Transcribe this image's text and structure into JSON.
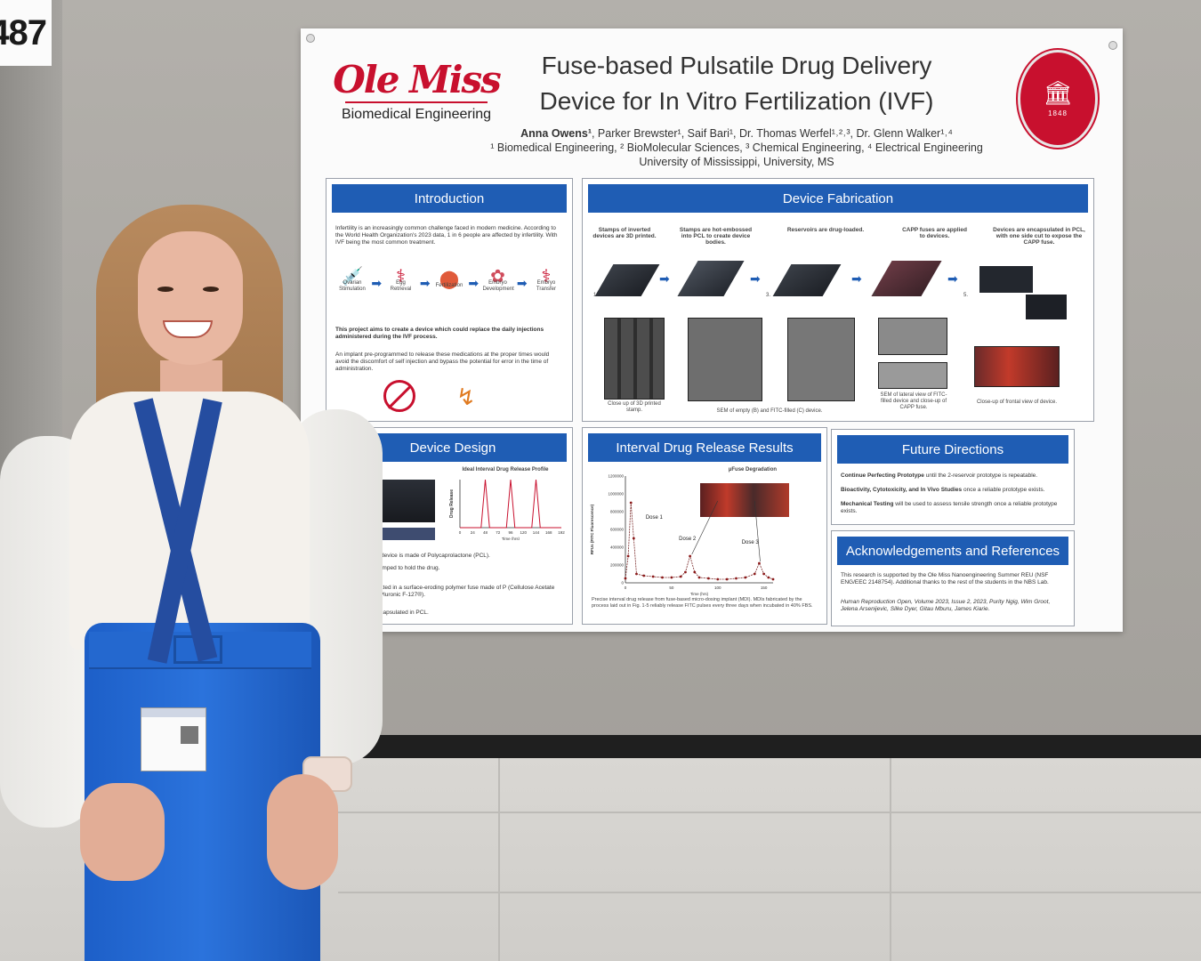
{
  "booth_number": "487",
  "poster": {
    "logo_text": "Ole Miss",
    "logo_subtitle": "Biomedical Engineering",
    "seal_year": "1848",
    "title_line1": "Fuse-based Pulsatile Drug Delivery",
    "title_line2": "Device for In Vitro Fertilization (IVF)",
    "author_first": "Anna Owens¹",
    "authors_rest": ", Parker Brewster¹, Saif Bari¹, Dr. Thomas Werfel¹˒²˒³, Dr. Glenn Walker¹˒⁴",
    "affiliations": "¹ Biomedical Engineering, ² BioMolecular Sciences, ³ Chemical Engineering, ⁴ Electrical Engineering",
    "university": "University of Mississippi, University, MS",
    "sections": {
      "introduction": {
        "heading": "Introduction",
        "p1": "Infertility is an increasingly common challenge faced in modern medicine. According to the World Health Organization's 2023 data, 1 in 6 people are affected by infertility. With IVF being the most common treatment.",
        "steps": [
          "Ovarian Stimulation",
          "Egg Retrieval",
          "Fertilization",
          "Embryo Development",
          "Embryo Transfer"
        ],
        "p2": "This project aims to create a device which could replace the daily injections administered during the IVF process.",
        "p3": "An implant pre-programmed to release these medications at the proper times would avoid the discomfort of self injection and bypass the potential for error in the time of administration."
      },
      "fabrication": {
        "heading": "Device Fabrication",
        "steps": [
          "Stamps of inverted devices are 3D printed.",
          "Stamps are hot-embossed into PCL to create device bodies.",
          "Reservoirs are drug-loaded.",
          "CAPP fuses are applied to devices.",
          "Devices are encapsulated in PCL, with one side cut to expose the CAPP fuse."
        ],
        "step_numbers": [
          "1.",
          "2.",
          "3.",
          "4.",
          "5."
        ],
        "caption_a": "Close up of 3D printed stamp.",
        "caption_bc": "SEM of empty (B) and FITC-filled (C) device.",
        "caption_d": "SEM of lateral view of FITC-filled device and close-up of CAPP fuse.",
        "caption_e": "Close-up of frontal view of device."
      },
      "design": {
        "heading": "Device Design",
        "profile_title": "Ideal Interval Drug Release Profile",
        "ylabel": "Drug Release",
        "xlabel": "Time (hrs)",
        "ticks": [
          "0",
          "24",
          "48",
          "72",
          "96",
          "120",
          "144",
          "168",
          "192"
        ],
        "b1": "he body of the device is made of Polycaprolactone (PCL).",
        "b2": "servoirs are stamped to hold the drug.",
        "b3": "devices are coated in a surface-eroding polymer fuse made of P (Cellulose Acetate Phthalate and Pluronic F-127®).",
        "b4": "devices are encapsulated in PCL."
      },
      "results": {
        "heading": "Interval Drug Release Results",
        "fuse_label": "µFuse Degradation",
        "dose1": "Dose 1",
        "dose2": "Dose 2",
        "dose3": "Dose 3",
        "ylabel": "RFUs (FITC Fluorescence)",
        "xlabel": "Time (hrs)",
        "yticks": [
          "1200000",
          "1000000",
          "800000",
          "600000",
          "400000",
          "200000",
          "0"
        ],
        "xticks": [
          "0",
          "50",
          "100",
          "150"
        ],
        "caption": "Precise interval drug release from fuse-based micro-dosing implant (MDI). MDIs fabricated by the process laid out in Fig. 1-5 reliably release FITC pulses every three days when incubated in 40% FBS."
      },
      "future": {
        "heading": "Future Directions",
        "i1_bold": "Continue Perfecting Prototype",
        "i1_rest": " until the 2-reservoir prototype is repeatable.",
        "i2_bold": "Bioactivity, Cytotoxicity, and In Vivo Studies",
        "i2_rest": " once a reliable prototype exists.",
        "i3_bold": "Mechanical Testing",
        "i3_rest": " will be used to assess tensile strength once a reliable prototype exists."
      },
      "acknowledgements": {
        "heading": "Acknowledgements and References",
        "p1": "This research is supported by the Ole Miss Nanoengineering Summer REU (NSF ENG/EEC 2148754). Additional thanks to the rest of the students in the NBS Lab.",
        "p2": "Human Reproduction Open, Volume 2023, Issue 2, 2023, Purity Ngig, Wim Groot, Jelena Arsenijevic, Silke Dyer, Gitau Mburu, James Kiarie."
      }
    }
  },
  "colors": {
    "header_blue": "#1f5db4",
    "ole_miss_red": "#c8102e",
    "pants_blue": "#2b73dc"
  },
  "chart_data": [
    {
      "type": "line",
      "title": "Ideal Interval Drug Release Profile",
      "xlabel": "Time (hrs)",
      "ylabel": "Drug Release",
      "x": [
        0,
        24,
        40,
        48,
        56,
        72,
        88,
        96,
        104,
        120,
        136,
        144,
        152,
        168,
        192
      ],
      "y": [
        0,
        0,
        0,
        1,
        0,
        0,
        0,
        1,
        0,
        0,
        0,
        1,
        0,
        0,
        0
      ],
      "xlim": [
        0,
        192
      ],
      "ylim": [
        0,
        1
      ]
    },
    {
      "type": "line",
      "title": "µFuse Degradation",
      "xlabel": "Time (hrs)",
      "ylabel": "RFUs (FITC Fluorescence)",
      "x": [
        0,
        3,
        6,
        9,
        12,
        20,
        30,
        40,
        50,
        60,
        65,
        70,
        75,
        80,
        90,
        100,
        110,
        120,
        130,
        140,
        145,
        150,
        155,
        160
      ],
      "y": [
        50000,
        300000,
        900000,
        500000,
        100000,
        80000,
        70000,
        60000,
        60000,
        70000,
        120000,
        300000,
        120000,
        60000,
        50000,
        40000,
        40000,
        50000,
        60000,
        100000,
        220000,
        100000,
        60000,
        40000
      ],
      "xlim": [
        0,
        160
      ],
      "ylim": [
        0,
        1200000
      ]
    }
  ]
}
